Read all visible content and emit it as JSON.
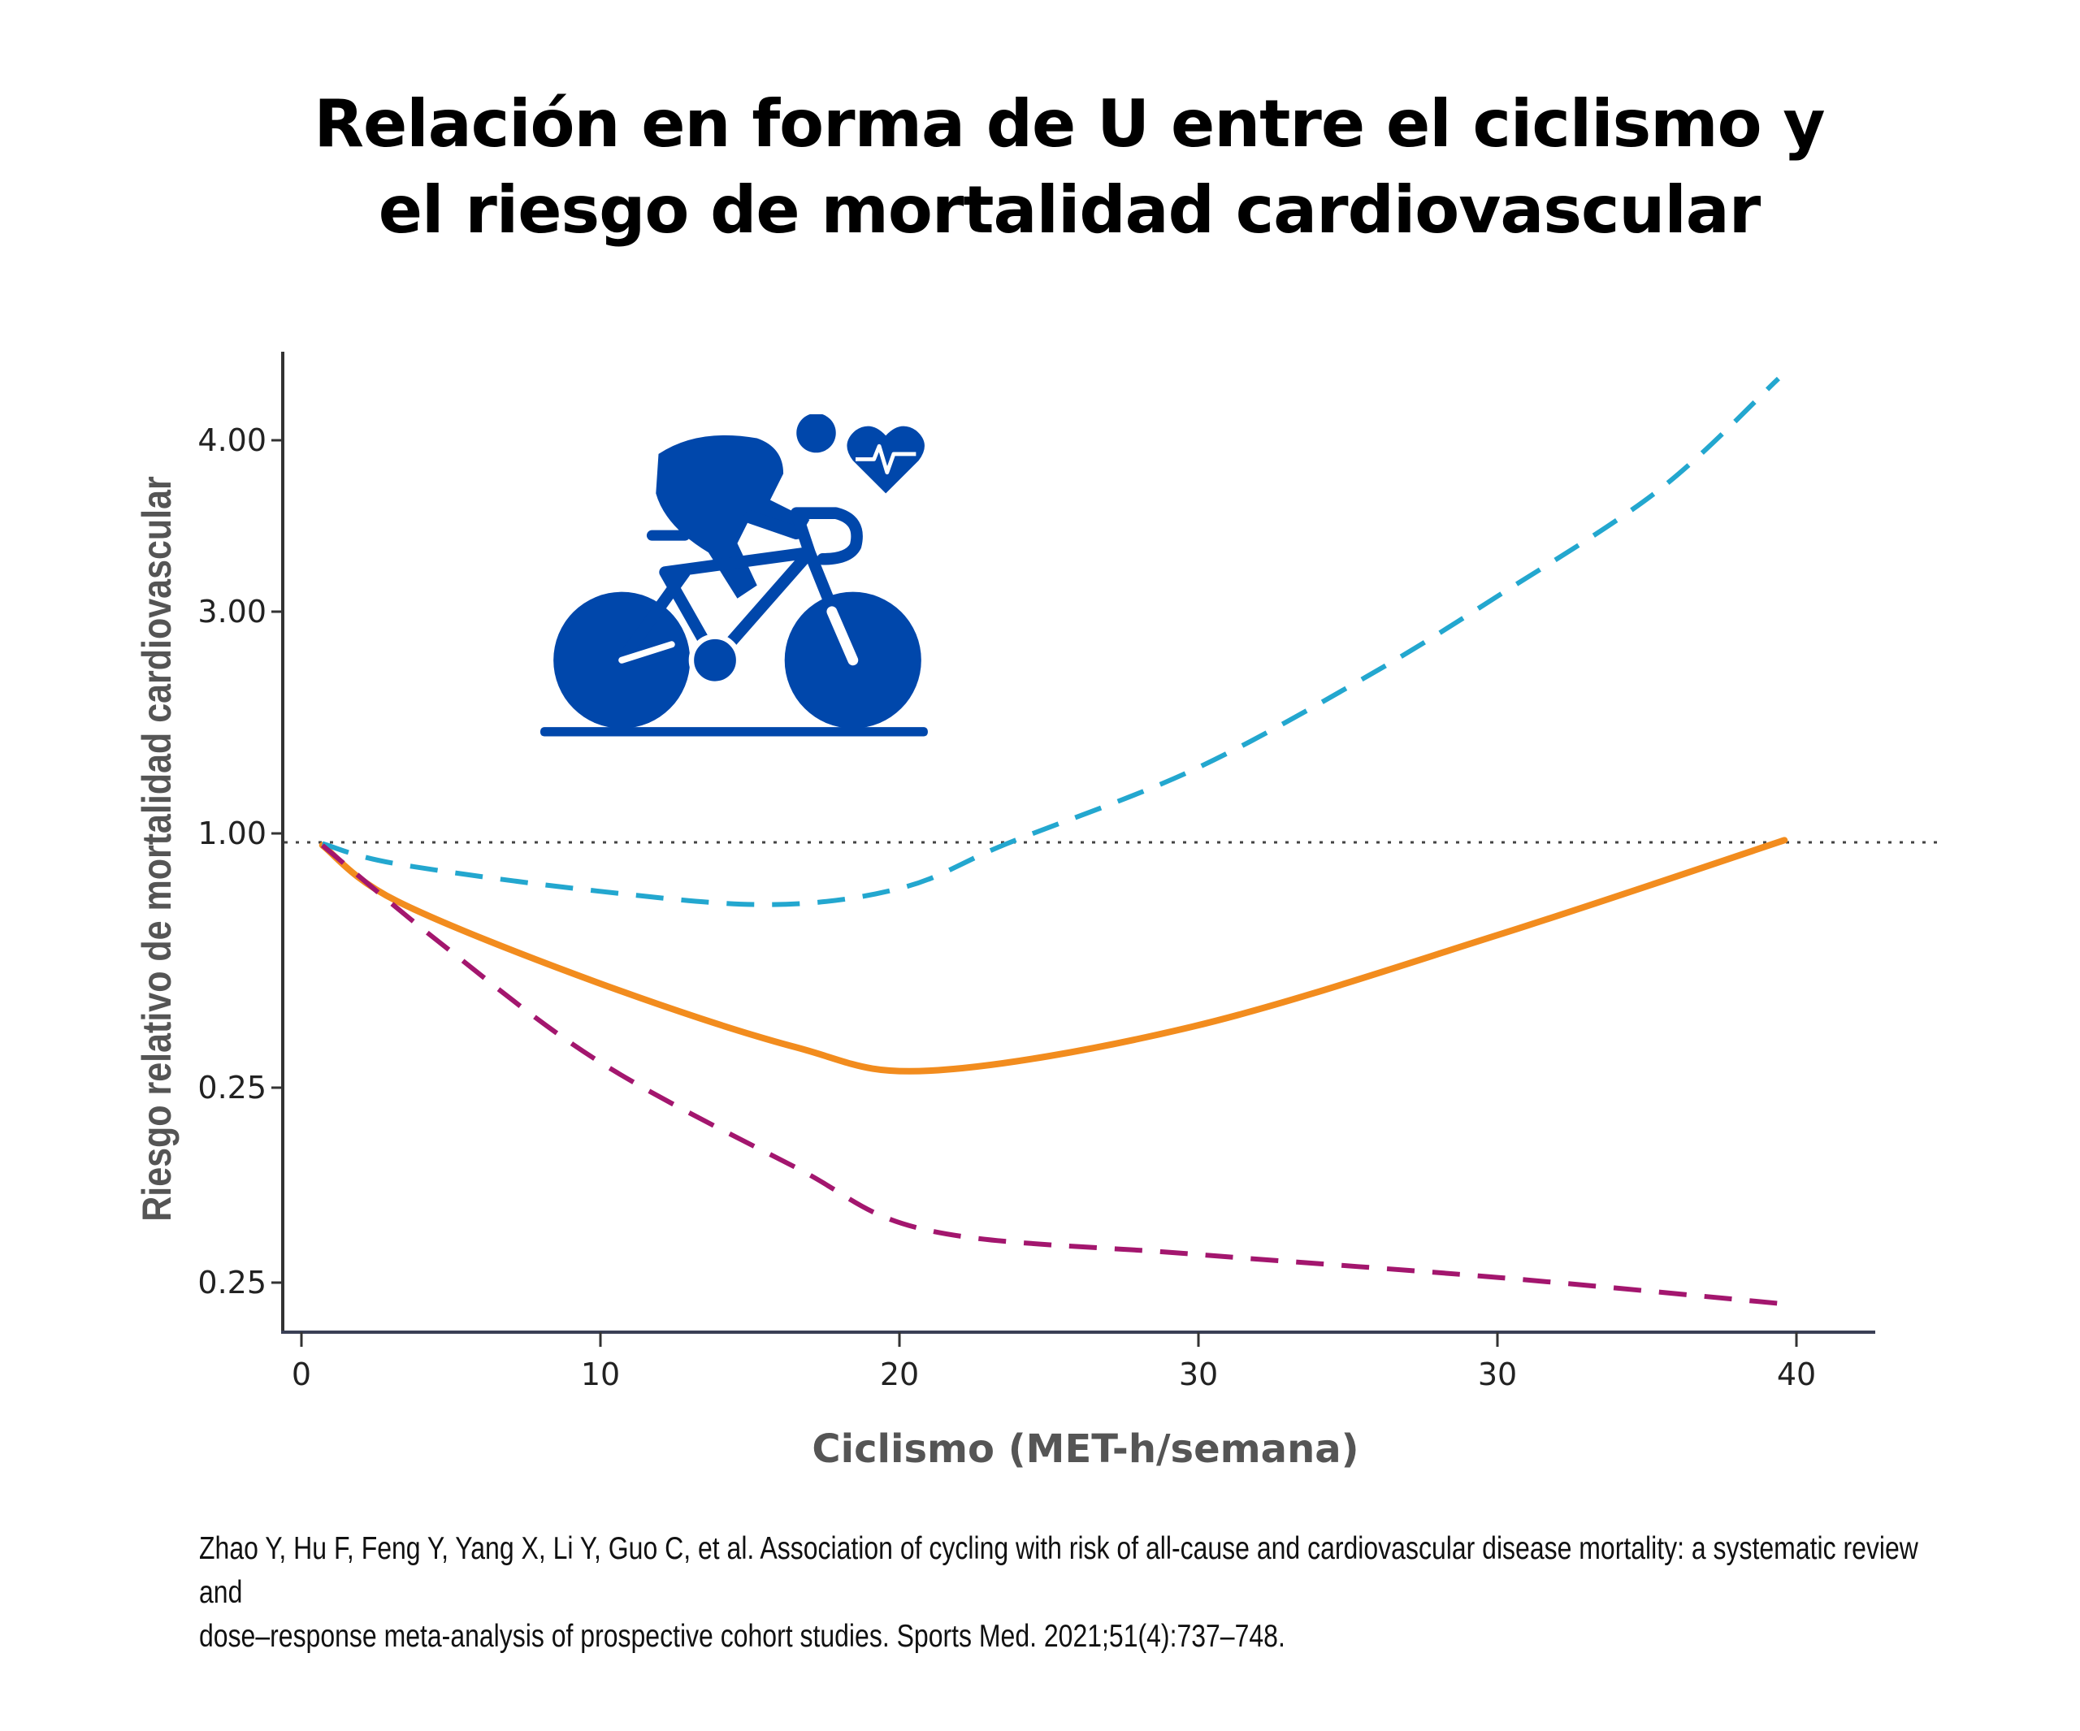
{
  "title": {
    "line1": "Relación en forma de U entre el ciclismo y",
    "line2": "el riesgo de mortalidad cardiovascular"
  },
  "citation": {
    "line1": "Zhao Y, Hu F, Feng Y, Yang X, Li Y, Guo C, et al. Association of cycling with risk of all-cause and cardiovascular disease mortality: a systematic review and",
    "line2": "dose–response meta-analysis of prospective cohort studies. Sports Med. 2021;51(4):737–748."
  },
  "icon": {
    "name": "cyclist-heart-icon",
    "color": "#0047AB"
  },
  "chart_data": {
    "type": "line",
    "xlabel": "Ciclismo (MET-h/semana)",
    "ylabel": "Riesgo relativo de mortalidad cardiovascular",
    "x_ticks": [
      "0",
      "10",
      "20",
      "30",
      "30",
      "40"
    ],
    "y_ticks": [
      "4.00",
      "3.00",
      "1.00",
      "0.25",
      "0.25"
    ],
    "reference_line": {
      "y": 1.0,
      "style": "dotted",
      "color": "#444444"
    },
    "grid": false,
    "series": [
      {
        "style": "solid",
        "color": "#F28C1E",
        "x": [
          0.7,
          3.2,
          9.9,
          16.5,
          21,
          29.8,
          40,
          49.6
        ],
        "y": [
          0.965,
          0.8,
          0.56,
          0.37,
          0.3,
          0.43,
          0.7,
          0.98
        ]
      },
      {
        "style": "dashed",
        "color": "#23A7CF",
        "x": [
          0.7,
          3.2,
          9.9,
          15.7,
          20.1,
          23.6,
          29.8,
          35.6,
          40,
          45.4,
          49.4
        ],
        "y": [
          0.97,
          0.91,
          0.83,
          0.79,
          0.84,
          0.97,
          1.57,
          2.41,
          3.09,
          3.71,
          4.36
        ]
      },
      {
        "style": "dashed",
        "color": "#A3166E",
        "x": [
          0.7,
          4.6,
          9.9,
          16.5,
          21,
          29.8,
          40,
          49.4
        ],
        "y": [
          0.965,
          0.68,
          0.33,
          0.189,
          0.14,
          0.122,
          0.104,
          0.084
        ]
      }
    ]
  }
}
